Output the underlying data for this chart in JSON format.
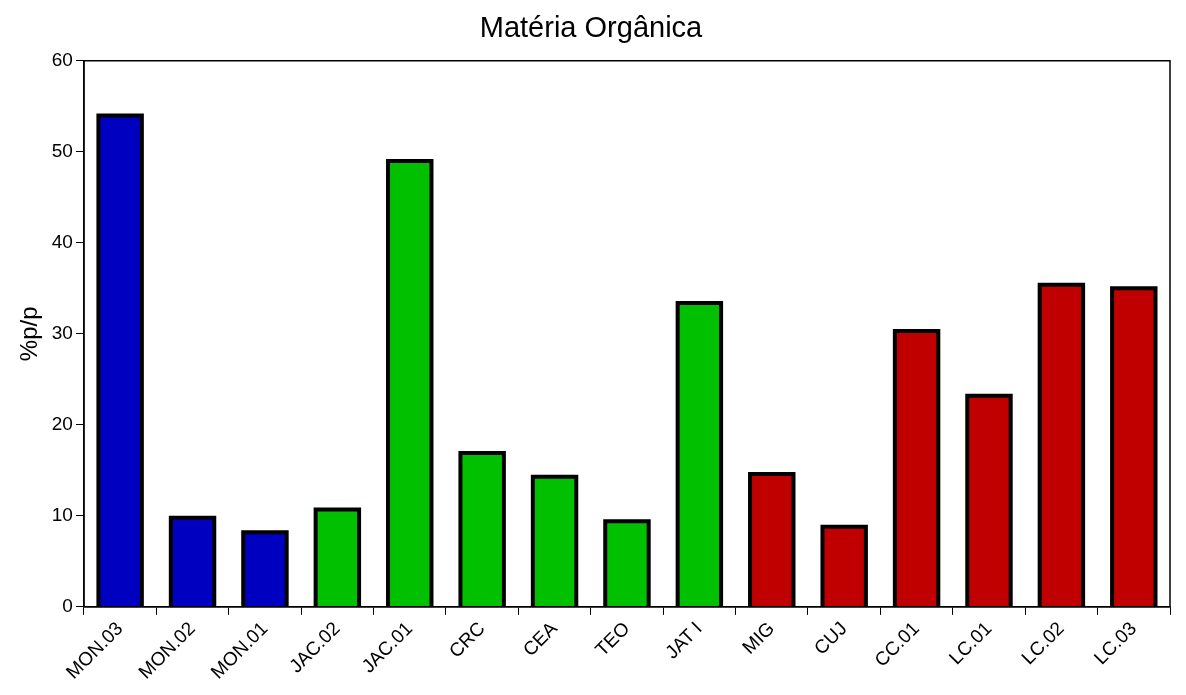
{
  "chart_data": {
    "type": "bar",
    "title": "Matéria Orgânica",
    "ylabel": "%p/p",
    "categories": [
      "MON.03",
      "MON.02",
      "MON.01",
      "JAC.02",
      "JAC.01",
      "CRC",
      "CEA",
      "TEO",
      "JAT I",
      "MIG",
      "CUJ",
      "CC.01",
      "LC.01",
      "LC.02",
      "LC.03"
    ],
    "values": [
      54,
      9.8,
      8.2,
      10.7,
      49,
      16.9,
      14.3,
      9.4,
      33.4,
      14.6,
      8.8,
      30.3,
      23.2,
      35.4,
      35
    ],
    "colors": [
      "#0000c0",
      "#0000c0",
      "#0000c0",
      "#00c000",
      "#00c000",
      "#00c000",
      "#00c000",
      "#00c000",
      "#00c000",
      "#c00000",
      "#c00000",
      "#c00000",
      "#c00000",
      "#c00000",
      "#c00000"
    ],
    "ylim": [
      0,
      60
    ],
    "yticks": [
      0,
      10,
      20,
      30,
      40,
      50,
      60
    ],
    "grid": false,
    "legend": false
  }
}
